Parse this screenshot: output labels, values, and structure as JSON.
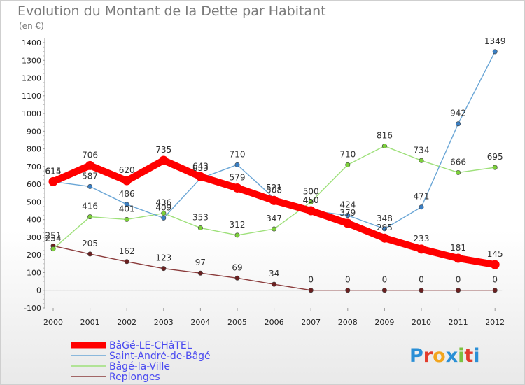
{
  "header": {
    "title": "Evolution du Montant de la Dette par Habitant",
    "subtitle": "(en €)"
  },
  "brand": {
    "logo_letters": [
      "P",
      "r",
      "o",
      "x",
      "i",
      "t",
      "i"
    ],
    "logo_colors": [
      "#2a8fd6",
      "#e23c2c",
      "#f2a51d",
      "#2a8fd6",
      "#7cc241",
      "#e23c2c",
      "#2a8fd6"
    ]
  },
  "chart_data": {
    "type": "line",
    "title": "Evolution du Montant de la Dette par Habitant",
    "ylabel": "(en €)",
    "xlabel": "",
    "ylim": [
      -100,
      1400
    ],
    "yticks": [
      -100,
      0,
      100,
      200,
      300,
      400,
      500,
      600,
      700,
      800,
      900,
      1000,
      1100,
      1200,
      1300,
      1400
    ],
    "categories": [
      "2000",
      "2001",
      "2002",
      "2003",
      "2004",
      "2005",
      "2006",
      "2007",
      "2008",
      "2009",
      "2010",
      "2011",
      "2012"
    ],
    "grid": false,
    "legend_position": "bottom-left",
    "series": [
      {
        "name": "BâGé-LE-CHâTEL",
        "color": "#ff0000",
        "values": [
          615,
          706,
          620,
          735,
          643,
          579,
          508,
          450,
          379,
          295,
          233,
          181,
          145
        ]
      },
      {
        "name": "Saint-André-de-Bâgé",
        "color": "#6aa6d6",
        "point_color": "#3a7fc4",
        "values": [
          614,
          587,
          486,
          409,
          633,
          710,
          521,
          450,
          424,
          348,
          471,
          942,
          1349
        ]
      },
      {
        "name": "Bâgé-la-Ville",
        "color": "#9ee07a",
        "point_color": "#7cd03a",
        "values": [
          234,
          416,
          401,
          436,
          353,
          312,
          347,
          500,
          710,
          816,
          734,
          666,
          695
        ]
      },
      {
        "name": "Replonges",
        "color": "#8a3a3a",
        "point_color": "#6b2020",
        "values": [
          251,
          205,
          162,
          123,
          97,
          69,
          34,
          0,
          0,
          0,
          0,
          0,
          0
        ]
      }
    ]
  }
}
